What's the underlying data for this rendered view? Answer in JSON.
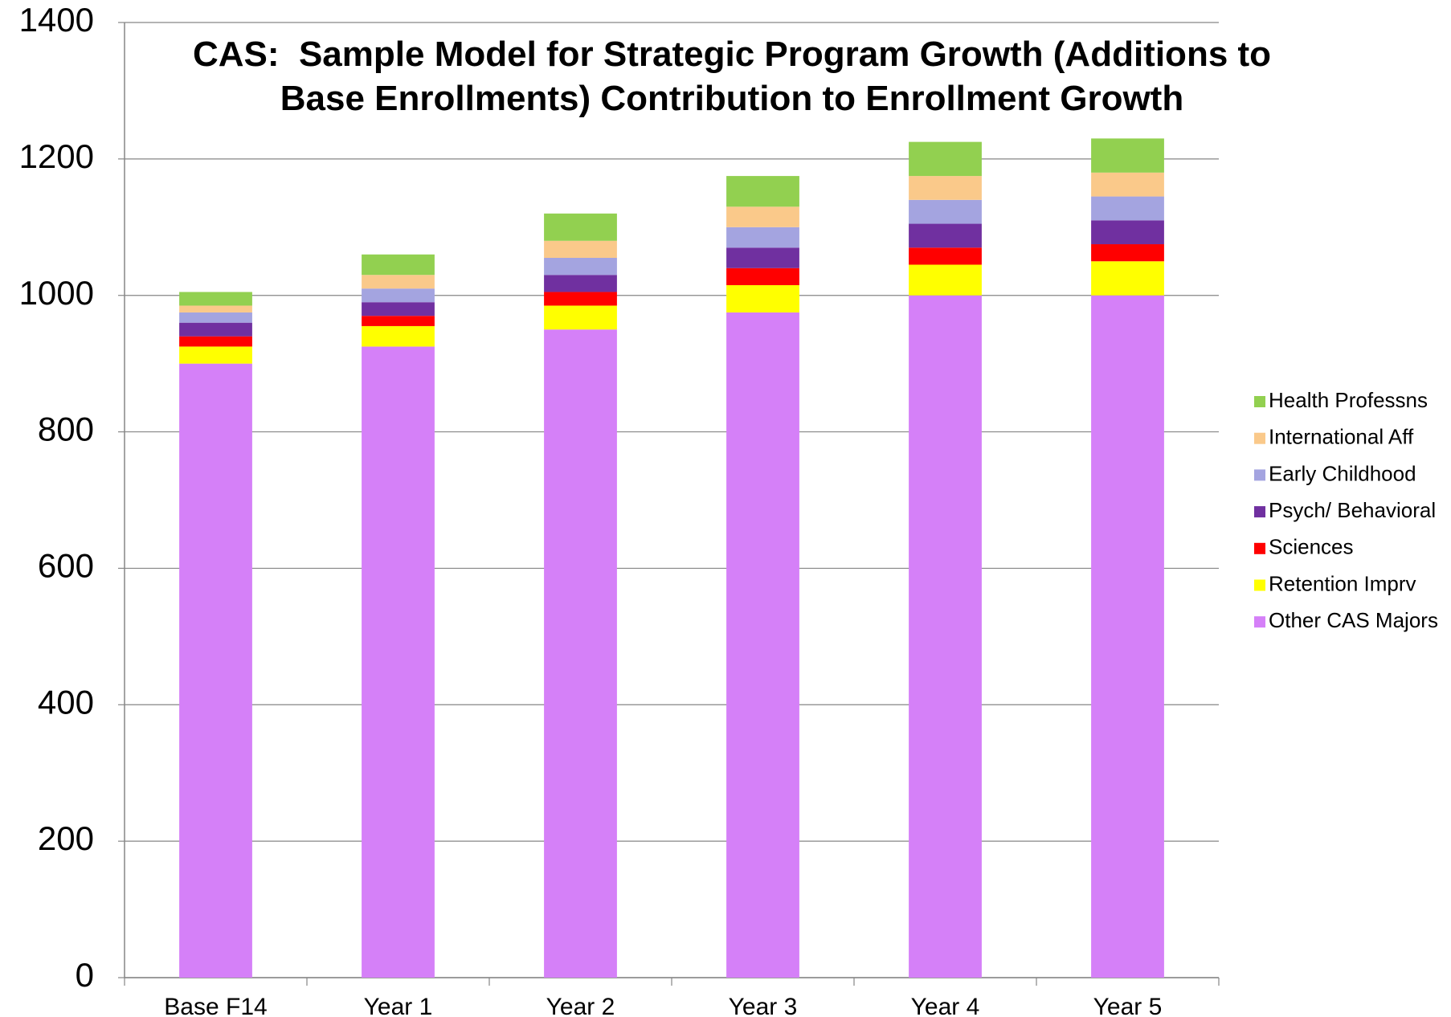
{
  "chart_data": {
    "type": "stacked_bar",
    "title": "CAS:  Sample Model for Strategic Program Growth (Additions to Base Enrollments) Contribution to Enrollment Growth",
    "categories": [
      "Base F14",
      "Year 1",
      "Year 2",
      "Year 3",
      "Year 4",
      "Year 5"
    ],
    "series": [
      {
        "name": "Other CAS Majors",
        "color": "#d580f8",
        "values": [
          900,
          925,
          950,
          975,
          1000,
          1000
        ]
      },
      {
        "name": "Retention Imprv",
        "color": "#ffff00",
        "values": [
          25,
          30,
          35,
          40,
          45,
          50
        ]
      },
      {
        "name": "Sciences",
        "color": "#ff0000",
        "values": [
          15,
          15,
          20,
          25,
          25,
          25
        ]
      },
      {
        "name": "Psych/ Behavioral",
        "color": "#7030a0",
        "values": [
          20,
          20,
          25,
          30,
          35,
          35
        ]
      },
      {
        "name": "Early Childhood",
        "color": "#a4a4e0",
        "values": [
          15,
          20,
          25,
          30,
          35,
          35
        ]
      },
      {
        "name": "International Aff",
        "color": "#fac98a",
        "values": [
          10,
          20,
          25,
          30,
          35,
          35
        ]
      },
      {
        "name": "Health Professns",
        "color": "#92d050",
        "values": [
          20,
          30,
          40,
          45,
          50,
          50
        ]
      }
    ],
    "ylim": [
      0,
      1400
    ],
    "yticks": [
      0,
      200,
      400,
      600,
      800,
      1000,
      1200,
      1400
    ],
    "grid": true,
    "legend": "right"
  }
}
